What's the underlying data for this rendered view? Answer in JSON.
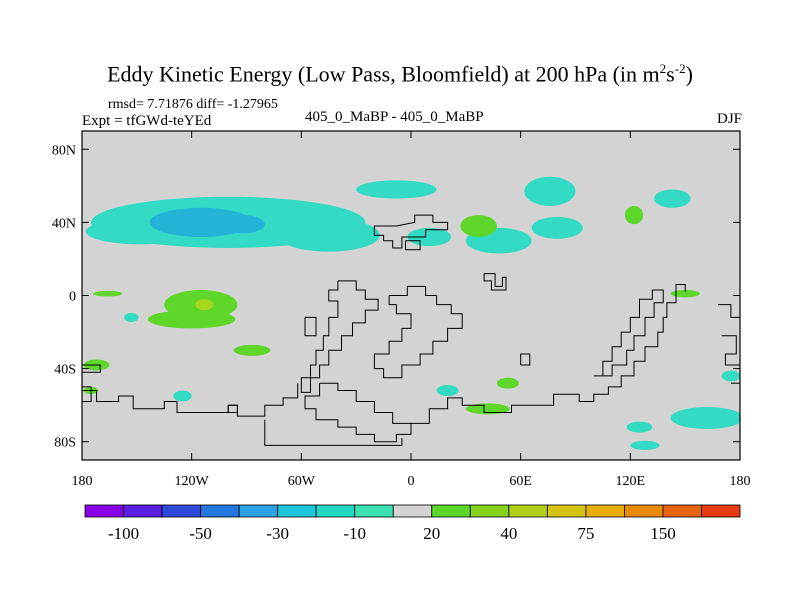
{
  "title": {
    "main": "Eddy Kinetic Energy (Low Pass, Bloomfield) at 200 hPa (in m",
    "sup1": "2",
    "mid": "s",
    "sup2": "-2",
    "close": ")"
  },
  "stats_line": "rmsd= 7.71876 diff= -1.27965",
  "expt_line": "Expt = tfGWd-teYEd",
  "center_label": "405_0_MaBP - 405_0_MaBP",
  "season": "DJF",
  "colors": {
    "background_field": "#d3d3d3",
    "cyan": "#33dbc4",
    "light_blue": "#23b4d8",
    "green": "#5ed62a",
    "yellow_green": "#a6d61f",
    "coast": "#000000"
  },
  "chart_data": {
    "type": "heatmap",
    "title": "Eddy Kinetic Energy (Low Pass, Bloomfield) at 200 hPa (in m^2 s^-2)",
    "projection": "cylindrical equidistant",
    "x_ticks": [
      {
        "value": -180,
        "label": "180"
      },
      {
        "value": -120,
        "label": "120W"
      },
      {
        "value": -60,
        "label": "60W"
      },
      {
        "value": 0,
        "label": "0"
      },
      {
        "value": 60,
        "label": "60E"
      },
      {
        "value": 120,
        "label": "120E"
      },
      {
        "value": 180,
        "label": "180"
      }
    ],
    "y_ticks": [
      {
        "value": 80,
        "label": "80N"
      },
      {
        "value": 40,
        "label": "40N"
      },
      {
        "value": 0,
        "label": "0"
      },
      {
        "value": -40,
        "label": "40S"
      },
      {
        "value": -80,
        "label": "80S"
      }
    ],
    "xlim": [
      -180,
      180
    ],
    "ylim": [
      -90,
      90
    ],
    "colorbar": {
      "colors": [
        "#8a00e6",
        "#5a1fe0",
        "#2f4ad8",
        "#2577e0",
        "#2aa2e3",
        "#1ec4da",
        "#22d8c2",
        "#3ae2b2",
        "#d3d3d3",
        "#5bd72a",
        "#86d21c",
        "#b0d01a",
        "#d4c411",
        "#e7ad0a",
        "#ea8a0a",
        "#e8640f",
        "#e53a13"
      ],
      "labels": [
        {
          "after_box": 1,
          "text": "-100"
        },
        {
          "after_box": 3,
          "text": "-50"
        },
        {
          "after_box": 5,
          "text": "-30"
        },
        {
          "after_box": 7,
          "text": "-10"
        },
        {
          "after_box": 9,
          "text": "20"
        },
        {
          "after_box": 11,
          "text": "40"
        },
        {
          "after_box": 13,
          "text": "75"
        },
        {
          "after_box": 15,
          "text": "150"
        }
      ]
    },
    "blobs": [
      {
        "color": "cyan",
        "level": -10,
        "lon": -100,
        "lat": 40,
        "rlon": 75,
        "rlat": 14
      },
      {
        "color": "cyan",
        "level": -10,
        "lon": -148,
        "lat": 35,
        "rlon": 30,
        "rlat": 7
      },
      {
        "color": "light_blue",
        "level": -30,
        "lon": -115,
        "lat": 40,
        "rlon": 28,
        "rlat": 8
      },
      {
        "color": "light_blue",
        "level": -30,
        "lon": -92,
        "lat": 39,
        "rlon": 12,
        "rlat": 5
      },
      {
        "color": "cyan",
        "level": -10,
        "lon": -45,
        "lat": 33,
        "rlon": 28,
        "rlat": 9
      },
      {
        "color": "cyan",
        "level": -10,
        "lon": -8,
        "lat": 58,
        "rlon": 22,
        "rlat": 5
      },
      {
        "color": "cyan",
        "level": -10,
        "lon": 48,
        "lat": 30,
        "rlon": 18,
        "rlat": 7
      },
      {
        "color": "green",
        "level": 20,
        "lon": 37,
        "lat": 38,
        "rlon": 10,
        "rlat": 6
      },
      {
        "color": "cyan",
        "level": -10,
        "lon": 10,
        "lat": 32,
        "rlon": 12,
        "rlat": 5
      },
      {
        "color": "cyan",
        "level": -10,
        "lon": 80,
        "lat": 37,
        "rlon": 14,
        "rlat": 6
      },
      {
        "color": "cyan",
        "level": -10,
        "lon": 76,
        "lat": 57,
        "rlon": 14,
        "rlat": 8
      },
      {
        "color": "cyan",
        "level": -10,
        "lon": 143,
        "lat": 53,
        "rlon": 10,
        "rlat": 5
      },
      {
        "color": "green",
        "level": 20,
        "lon": 122,
        "lat": 44,
        "rlon": 5,
        "rlat": 5
      },
      {
        "color": "green",
        "level": 20,
        "lon": -115,
        "lat": -5,
        "rlon": 20,
        "rlat": 8
      },
      {
        "color": "green",
        "level": 20,
        "lon": -120,
        "lat": -13,
        "rlon": 24,
        "rlat": 5
      },
      {
        "color": "yellow_green",
        "level": 30,
        "lon": -113,
        "lat": -5,
        "rlon": 5,
        "rlat": 3
      },
      {
        "color": "green",
        "level": 20,
        "lon": -87,
        "lat": -30,
        "rlon": 10,
        "rlat": 3
      },
      {
        "color": "green",
        "level": 20,
        "lon": -166,
        "lat": 1,
        "rlon": 8,
        "rlat": 1.5
      },
      {
        "color": "green",
        "level": 20,
        "lon": -172,
        "lat": -38,
        "rlon": 7,
        "rlat": 3
      },
      {
        "color": "cyan",
        "level": -10,
        "lon": -125,
        "lat": -55,
        "rlon": 5,
        "rlat": 3
      },
      {
        "color": "green",
        "level": 20,
        "lon": 53,
        "lat": -48,
        "rlon": 6,
        "rlat": 3
      },
      {
        "color": "green",
        "level": 20,
        "lon": 42,
        "lat": -62,
        "rlon": 12,
        "rlat": 3
      },
      {
        "color": "cyan",
        "level": -10,
        "lon": 20,
        "lat": -52,
        "rlon": 6,
        "rlat": 3
      },
      {
        "color": "cyan",
        "level": -10,
        "lon": 125,
        "lat": -72,
        "rlon": 7,
        "rlat": 3
      },
      {
        "color": "cyan",
        "level": -10,
        "lon": 162,
        "lat": -67,
        "rlon": 20,
        "rlat": 6
      },
      {
        "color": "cyan",
        "level": -10,
        "lon": 128,
        "lat": -82,
        "rlon": 8,
        "rlat": 2.5
      },
      {
        "color": "green",
        "level": 20,
        "lon": 150,
        "lat": 1,
        "rlon": 8,
        "rlat": 2
      },
      {
        "color": "cyan",
        "level": -10,
        "lon": 175,
        "lat": -44,
        "rlon": 5,
        "rlat": 3
      },
      {
        "color": "cyan",
        "level": -10,
        "lon": -153,
        "lat": -12,
        "rlon": 4,
        "rlat": 2.5
      },
      {
        "color": "green",
        "level": 20,
        "lon": -175,
        "lat": -52,
        "rlon": 4,
        "rlat": 2
      }
    ],
    "coastlines": [
      [
        [
          -8,
          38
        ],
        [
          2,
          40
        ],
        [
          2,
          44
        ],
        [
          12,
          44
        ],
        [
          12,
          40
        ],
        [
          20,
          40
        ],
        [
          20,
          36
        ],
        [
          8,
          36
        ],
        [
          8,
          32
        ],
        [
          -5,
          32
        ],
        [
          -5,
          26
        ],
        [
          -10,
          26
        ],
        [
          -10,
          30
        ],
        [
          -15,
          30
        ],
        [
          -15,
          33
        ],
        [
          -20,
          33
        ],
        [
          -20,
          38
        ],
        [
          -8,
          38
        ]
      ],
      [
        [
          -3,
          30
        ],
        [
          5,
          30
        ],
        [
          5,
          25
        ],
        [
          -3,
          25
        ],
        [
          -3,
          30
        ]
      ],
      [
        [
          40,
          12
        ],
        [
          46,
          12
        ],
        [
          46,
          5
        ],
        [
          50,
          5
        ],
        [
          50,
          10
        ],
        [
          52,
          10
        ],
        [
          52,
          3
        ],
        [
          44,
          3
        ],
        [
          44,
          8
        ],
        [
          40,
          8
        ],
        [
          40,
          12
        ]
      ],
      [
        [
          -40,
          8
        ],
        [
          -30,
          8
        ],
        [
          -30,
          3
        ],
        [
          -25,
          3
        ],
        [
          -25,
          -2
        ],
        [
          -18,
          -2
        ],
        [
          -18,
          -8
        ],
        [
          -25,
          -8
        ],
        [
          -25,
          -15
        ],
        [
          -32,
          -15
        ],
        [
          -32,
          -22
        ],
        [
          -38,
          -22
        ],
        [
          -38,
          -30
        ],
        [
          -45,
          -30
        ],
        [
          -45,
          -38
        ],
        [
          -50,
          -38
        ],
        [
          -50,
          -45
        ],
        [
          -55,
          -45
        ],
        [
          -55,
          -53
        ],
        [
          -60,
          -53
        ],
        [
          -60,
          -45
        ],
        [
          -55,
          -45
        ],
        [
          -55,
          -38
        ],
        [
          -52,
          -38
        ],
        [
          -52,
          -30
        ],
        [
          -48,
          -30
        ],
        [
          -48,
          -22
        ],
        [
          -45,
          -22
        ],
        [
          -45,
          -12
        ],
        [
          -40,
          -12
        ],
        [
          -40,
          -3
        ],
        [
          -45,
          -3
        ],
        [
          -45,
          3
        ],
        [
          -40,
          3
        ],
        [
          -40,
          8
        ]
      ],
      [
        [
          -12,
          0
        ],
        [
          -2,
          0
        ],
        [
          -2,
          5
        ],
        [
          8,
          5
        ],
        [
          8,
          0
        ],
        [
          14,
          0
        ],
        [
          14,
          -5
        ],
        [
          22,
          -5
        ],
        [
          22,
          -10
        ],
        [
          28,
          -10
        ],
        [
          28,
          -18
        ],
        [
          20,
          -18
        ],
        [
          20,
          -25
        ],
        [
          12,
          -25
        ],
        [
          12,
          -32
        ],
        [
          5,
          -32
        ],
        [
          5,
          -38
        ],
        [
          -5,
          -38
        ],
        [
          -5,
          -45
        ],
        [
          -15,
          -45
        ],
        [
          -15,
          -40
        ],
        [
          -20,
          -40
        ],
        [
          -20,
          -32
        ],
        [
          -12,
          -32
        ],
        [
          -12,
          -25
        ],
        [
          -5,
          -25
        ],
        [
          -5,
          -18
        ],
        [
          0,
          -18
        ],
        [
          0,
          -10
        ],
        [
          -8,
          -10
        ],
        [
          -8,
          -5
        ],
        [
          -12,
          -5
        ],
        [
          -12,
          0
        ]
      ],
      [
        [
          -58,
          -12
        ],
        [
          -52,
          -12
        ],
        [
          -52,
          -22
        ],
        [
          -58,
          -22
        ],
        [
          -58,
          -12
        ]
      ],
      [
        [
          -50,
          -48
        ],
        [
          -40,
          -48
        ],
        [
          -40,
          -52
        ],
        [
          -30,
          -52
        ],
        [
          -30,
          -58
        ],
        [
          -20,
          -58
        ],
        [
          -20,
          -64
        ],
        [
          -10,
          -64
        ],
        [
          -10,
          -70
        ],
        [
          0,
          -70
        ],
        [
          0,
          -76
        ],
        [
          -8,
          -76
        ],
        [
          -8,
          -80
        ],
        [
          -20,
          -80
        ],
        [
          -20,
          -76
        ],
        [
          -30,
          -76
        ],
        [
          -30,
          -72
        ],
        [
          -40,
          -72
        ],
        [
          -40,
          -68
        ],
        [
          -52,
          -68
        ],
        [
          -52,
          -62
        ],
        [
          -58,
          -62
        ],
        [
          -58,
          -55
        ],
        [
          -50,
          -55
        ],
        [
          -50,
          -48
        ]
      ],
      [
        [
          -180,
          -52
        ],
        [
          -172,
          -52
        ],
        [
          -172,
          -58
        ],
        [
          -160,
          -58
        ],
        [
          -160,
          -55
        ],
        [
          -152,
          -55
        ],
        [
          -152,
          -62
        ],
        [
          -135,
          -62
        ],
        [
          -135,
          -58
        ],
        [
          -128,
          -58
        ],
        [
          -128,
          -64
        ],
        [
          -100,
          -64
        ],
        [
          -100,
          -60
        ],
        [
          -95,
          -60
        ],
        [
          -95,
          -66
        ],
        [
          -80,
          -66
        ],
        [
          -80,
          -60
        ],
        [
          -70,
          -60
        ],
        [
          -70,
          -56
        ],
        [
          -62,
          -56
        ],
        [
          -62,
          -48
        ]
      ],
      [
        [
          -100,
          -60
        ],
        [
          -95,
          -60
        ],
        [
          -95,
          -64
        ],
        [
          -100,
          -64
        ],
        [
          -100,
          -60
        ]
      ],
      [
        [
          -80,
          -68
        ],
        [
          -80,
          -82
        ],
        [
          -5,
          -82
        ],
        [
          -5,
          -78
        ]
      ],
      [
        [
          -180,
          -58
        ],
        [
          -175,
          -58
        ],
        [
          -175,
          -50
        ],
        [
          -180,
          -50
        ]
      ],
      [
        [
          0,
          -70
        ],
        [
          10,
          -70
        ],
        [
          10,
          -62
        ],
        [
          20,
          -62
        ],
        [
          20,
          -56
        ],
        [
          28,
          -56
        ],
        [
          28,
          -60
        ],
        [
          40,
          -60
        ],
        [
          40,
          -64
        ],
        [
          55,
          -64
        ],
        [
          55,
          -60
        ],
        [
          78,
          -60
        ],
        [
          78,
          -54
        ],
        [
          92,
          -54
        ],
        [
          92,
          -58
        ],
        [
          100,
          -58
        ],
        [
          100,
          -54
        ],
        [
          108,
          -54
        ],
        [
          108,
          -50
        ],
        [
          115,
          -50
        ],
        [
          115,
          -44
        ],
        [
          122,
          -44
        ],
        [
          122,
          -36
        ],
        [
          128,
          -36
        ],
        [
          128,
          -28
        ],
        [
          135,
          -28
        ],
        [
          135,
          -20
        ],
        [
          138,
          -20
        ],
        [
          138,
          -12
        ],
        [
          140,
          -12
        ],
        [
          140,
          -4
        ],
        [
          145,
          -4
        ],
        [
          145,
          6
        ],
        [
          150,
          6
        ],
        [
          150,
          2
        ]
      ],
      [
        [
          100,
          -44
        ],
        [
          105,
          -44
        ],
        [
          105,
          -36
        ],
        [
          110,
          -36
        ],
        [
          110,
          -28
        ],
        [
          115,
          -28
        ],
        [
          115,
          -20
        ],
        [
          120,
          -20
        ],
        [
          120,
          -12
        ],
        [
          125,
          -12
        ],
        [
          125,
          -2
        ],
        [
          132,
          -2
        ],
        [
          132,
          3
        ],
        [
          138,
          3
        ],
        [
          138,
          -4
        ],
        [
          133,
          -4
        ],
        [
          133,
          -12
        ],
        [
          128,
          -12
        ],
        [
          128,
          -22
        ],
        [
          122,
          -22
        ],
        [
          122,
          -30
        ],
        [
          118,
          -30
        ],
        [
          118,
          -38
        ],
        [
          110,
          -38
        ],
        [
          110,
          -44
        ],
        [
          100,
          -44
        ]
      ],
      [
        [
          168,
          -5
        ],
        [
          175,
          -5
        ],
        [
          175,
          -12
        ],
        [
          180,
          -12
        ]
      ],
      [
        [
          170,
          -22
        ],
        [
          178,
          -22
        ],
        [
          178,
          -32
        ],
        [
          172,
          -32
        ],
        [
          172,
          -38
        ],
        [
          180,
          -38
        ]
      ],
      [
        [
          175,
          -48
        ],
        [
          180,
          -48
        ]
      ],
      [
        [
          -180,
          -42
        ],
        [
          -170,
          -42
        ],
        [
          -170,
          -38
        ],
        [
          -180,
          -38
        ]
      ],
      [
        [
          60,
          -38
        ],
        [
          65,
          -38
        ],
        [
          65,
          -32
        ],
        [
          60,
          -32
        ],
        [
          60,
          -38
        ]
      ]
    ]
  }
}
